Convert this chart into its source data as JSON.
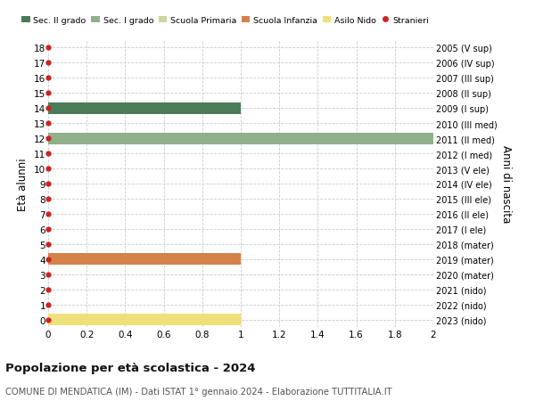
{
  "ages": [
    0,
    1,
    2,
    3,
    4,
    5,
    6,
    7,
    8,
    9,
    10,
    11,
    12,
    13,
    14,
    15,
    16,
    17,
    18
  ],
  "right_labels": [
    "2023 (nido)",
    "2022 (nido)",
    "2021 (nido)",
    "2020 (mater)",
    "2019 (mater)",
    "2018 (mater)",
    "2017 (I ele)",
    "2016 (II ele)",
    "2015 (III ele)",
    "2014 (IV ele)",
    "2013 (V ele)",
    "2012 (I med)",
    "2011 (II med)",
    "2010 (III med)",
    "2009 (I sup)",
    "2008 (II sup)",
    "2007 (III sup)",
    "2006 (IV sup)",
    "2005 (V sup)"
  ],
  "bars": [
    {
      "age": 14,
      "value": 1.0,
      "color": "#4a7c59",
      "label": "Sec. II grado"
    },
    {
      "age": 12,
      "value": 2.0,
      "color": "#8fb08a",
      "label": "Sec. I grado"
    },
    {
      "age": 4,
      "value": 1.0,
      "color": "#d4824a",
      "label": "Scuola Infanzia"
    },
    {
      "age": 0,
      "value": 1.0,
      "color": "#f0e07a",
      "label": "Asilo Nido"
    }
  ],
  "stranieri_color": "#cc2222",
  "stranieri_label": "Stranieri",
  "dot_x": 0,
  "xlim": [
    0,
    2.0
  ],
  "xticks": [
    0,
    0.2,
    0.4,
    0.6,
    0.8,
    1.0,
    1.2,
    1.4,
    1.6,
    1.8,
    2.0
  ],
  "ylim": [
    -0.5,
    18.5
  ],
  "ylabel_left": "Età alunni",
  "ylabel_right": "Anni di nascita",
  "title": "Popolazione per età scolastica - 2024",
  "subtitle": "COMUNE DI MENDATICA (IM) - Dati ISTAT 1° gennaio 2024 - Elaborazione TUTTITALIA.IT",
  "background_color": "#ffffff",
  "grid_color": "#cccccc",
  "bar_height": 0.75,
  "legend_colors": [
    "#4a7c59",
    "#8fb08a",
    "#c8d9a0",
    "#d4824a",
    "#f0e07a",
    "#cc2222"
  ],
  "legend_labels": [
    "Sec. II grado",
    "Sec. I grado",
    "Scuola Primaria",
    "Scuola Infanzia",
    "Asilo Nido",
    "Stranieri"
  ]
}
